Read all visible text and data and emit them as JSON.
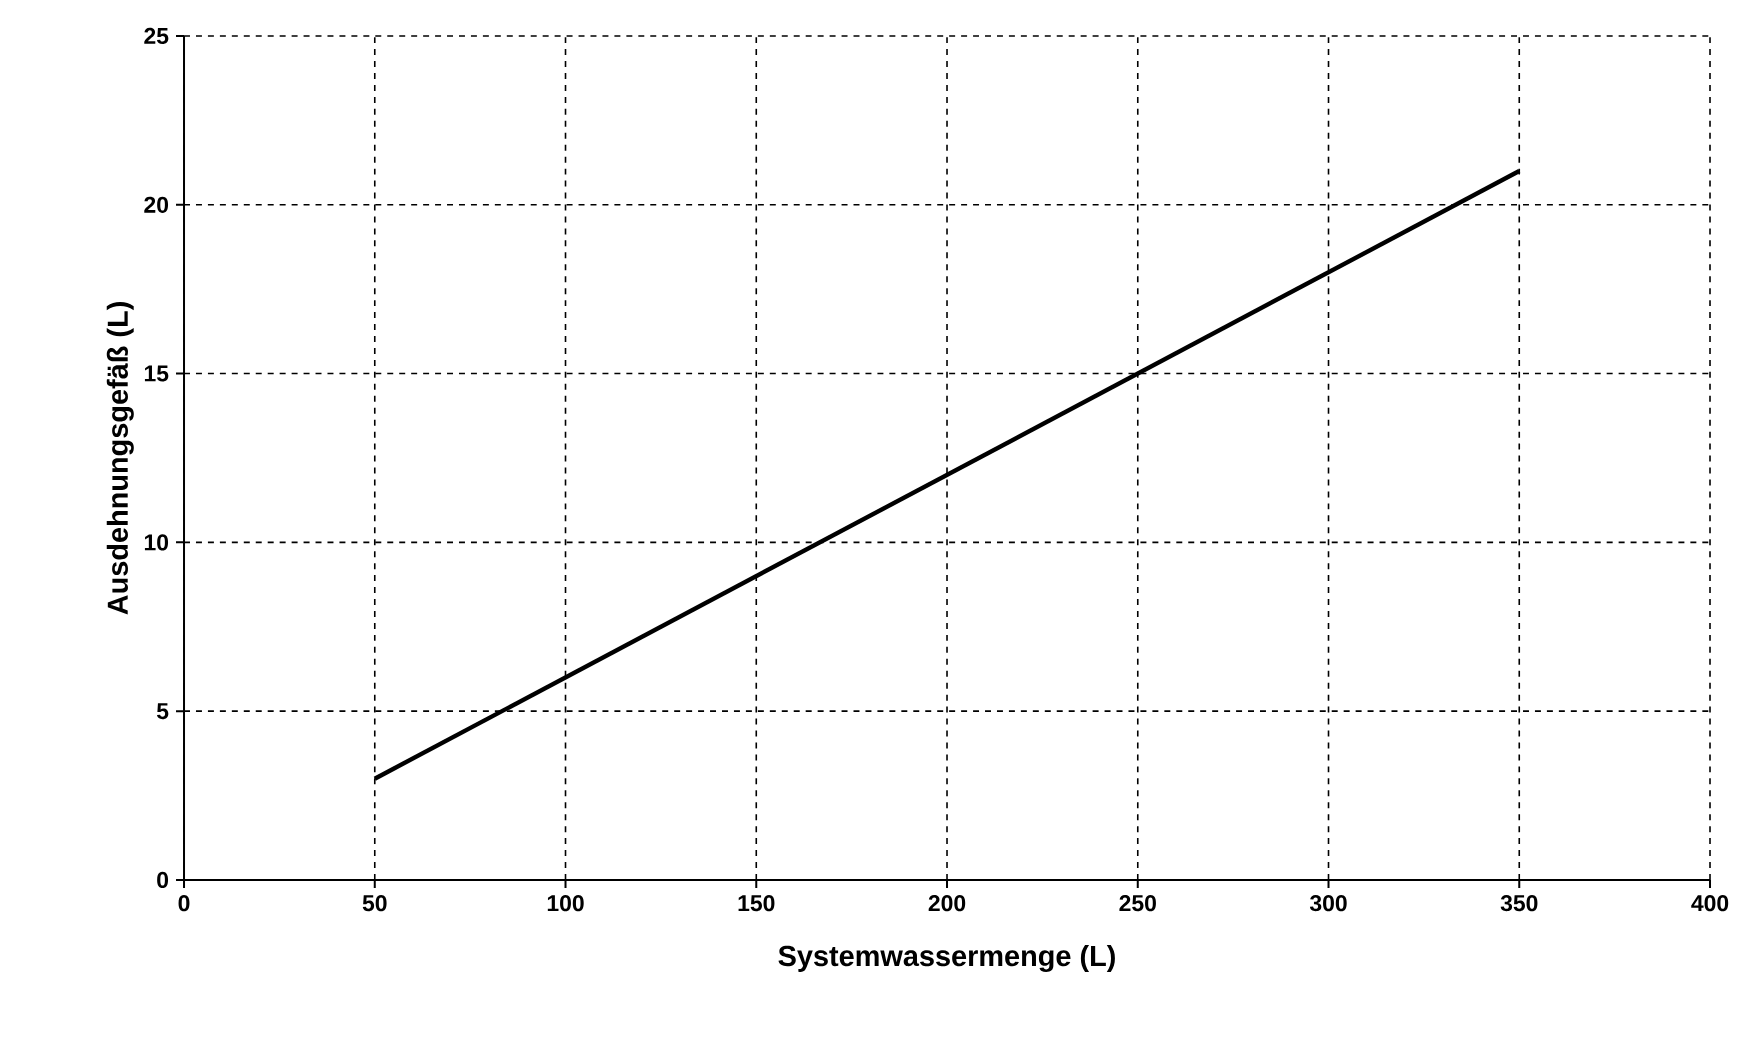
{
  "chart_data": {
    "type": "line",
    "xlabel": "Systemwassermenge (L)",
    "ylabel": "Ausdehnungsgefäß (L)",
    "series": [
      {
        "color": "#000000",
        "x": [
          50,
          350
        ],
        "values": [
          3,
          21
        ]
      }
    ],
    "xlim": [
      0,
      400
    ],
    "ylim": [
      0,
      25
    ],
    "xticks": [
      0,
      50,
      100,
      150,
      200,
      250,
      300,
      350,
      400
    ],
    "yticks": [
      0,
      5,
      10,
      15,
      20,
      25
    ],
    "grid": true,
    "marker": "none",
    "line_style": "solid"
  }
}
